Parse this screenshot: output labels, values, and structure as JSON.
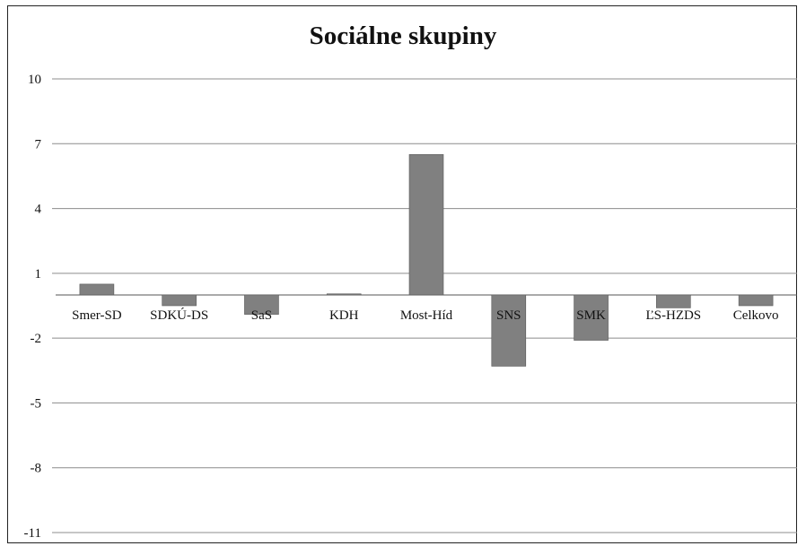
{
  "chart_data": {
    "type": "bar",
    "title": "Sociálne skupiny",
    "xlabel": "",
    "ylabel": "",
    "ylim": [
      -11,
      10
    ],
    "yticks": [
      10,
      7,
      4,
      1,
      -2,
      -5,
      -8,
      -11
    ],
    "grid": true,
    "legend": "none",
    "bar_color": "#808080",
    "categories": [
      "Smer-SD",
      "SDKÚ-DS",
      "SaS",
      "KDH",
      "Most-Híd",
      "SNS",
      "SMK",
      "ĽS-HZDS",
      "Celkovo"
    ],
    "values": [
      0.5,
      -0.5,
      -0.9,
      0.05,
      6.5,
      -3.3,
      -2.1,
      -0.6,
      -0.5
    ]
  }
}
